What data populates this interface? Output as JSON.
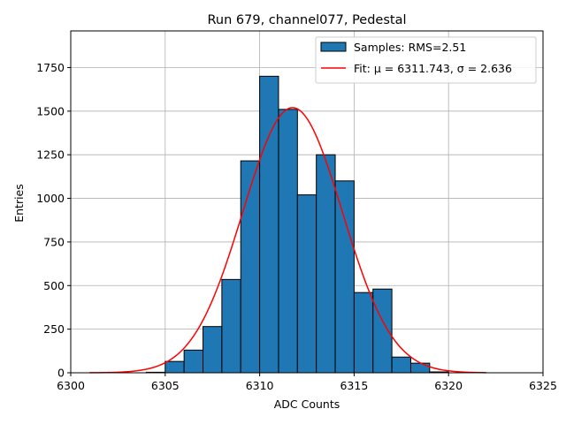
{
  "chart_data": {
    "type": "bar",
    "title": "Run 679, channel077, Pedestal",
    "xlabel": "ADC Counts",
    "ylabel": "Entries",
    "xlim": [
      6300,
      6325
    ],
    "ylim": [
      0,
      1960
    ],
    "xticks": [
      6300,
      6305,
      6310,
      6315,
      6320,
      6325
    ],
    "yticks": [
      0,
      250,
      500,
      750,
      1000,
      1250,
      1500,
      1750
    ],
    "grid": true,
    "legend_position": "top-right",
    "histogram": {
      "name": "Samples: RMS=2.51",
      "color": "#1f77b4",
      "edge_color": "#000000",
      "bin_width": 1,
      "bins": [
        {
          "x0": 6304,
          "count": 3
        },
        {
          "x0": 6305,
          "count": 65
        },
        {
          "x0": 6306,
          "count": 130
        },
        {
          "x0": 6307,
          "count": 265
        },
        {
          "x0": 6308,
          "count": 535
        },
        {
          "x0": 6309,
          "count": 1215
        },
        {
          "x0": 6310,
          "count": 1700
        },
        {
          "x0": 6311,
          "count": 1510
        },
        {
          "x0": 6312,
          "count": 1020
        },
        {
          "x0": 6313,
          "count": 1250
        },
        {
          "x0": 6314,
          "count": 1100
        },
        {
          "x0": 6315,
          "count": 460
        },
        {
          "x0": 6316,
          "count": 480
        },
        {
          "x0": 6317,
          "count": 90
        },
        {
          "x0": 6318,
          "count": 55
        },
        {
          "x0": 6319,
          "count": 5
        }
      ]
    },
    "fit": {
      "name": "Fit: μ = 6311.743, σ = 2.636",
      "color": "#ff0000",
      "mu": 6311.743,
      "sigma": 2.636,
      "amplitude": 1520,
      "x_range": [
        6301,
        6322
      ]
    }
  }
}
